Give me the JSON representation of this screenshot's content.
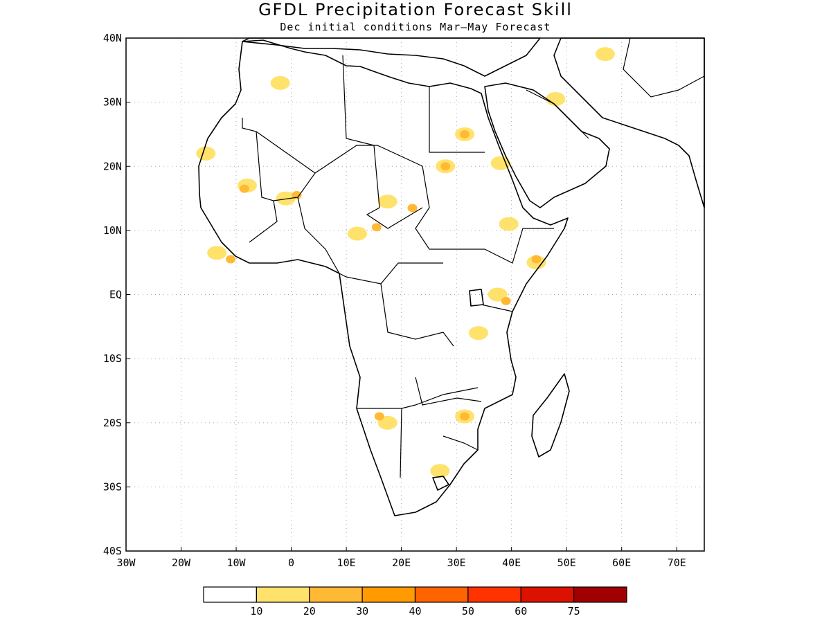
{
  "title": "GFDL Precipitation Forecast Skill",
  "subtitle": "Dec initial conditions  Mar–May Forecast",
  "axes": {
    "lon_range": [
      -30,
      75
    ],
    "lat_range": [
      -40,
      40
    ],
    "x_ticks": [
      "30W",
      "20W",
      "10W",
      "0",
      "10E",
      "20E",
      "30E",
      "40E",
      "50E",
      "60E",
      "70E"
    ],
    "y_ticks": [
      "40N",
      "30N",
      "20N",
      "10N",
      "EQ",
      "10S",
      "20S",
      "30S",
      "40S"
    ]
  },
  "legend": {
    "colors": [
      "#ffffff",
      "#ffe26b",
      "#ffb934",
      "#ff9a00",
      "#ff6400",
      "#ff3300",
      "#dd1100",
      "#a00000"
    ],
    "labels": [
      "10",
      "20",
      "30",
      "40",
      "50",
      "60",
      "75"
    ]
  },
  "skill_regions": [
    {
      "lon": 17.5,
      "lat": 14.5,
      "level": 1
    },
    {
      "lon": 22.0,
      "lat": 13.5,
      "level": 2
    },
    {
      "lon": 12.0,
      "lat": 9.5,
      "level": 1
    },
    {
      "lon": 15.5,
      "lat": 10.5,
      "level": 2
    },
    {
      "lon": -8.0,
      "lat": 17.0,
      "level": 1
    },
    {
      "lon": -8.5,
      "lat": 16.5,
      "level": 2
    },
    {
      "lon": -1.0,
      "lat": 15.0,
      "level": 1
    },
    {
      "lon": 1.0,
      "lat": 15.5,
      "level": 2
    },
    {
      "lon": 28.0,
      "lat": 20.0,
      "level": 1
    },
    {
      "lon": 28.0,
      "lat": 20.0,
      "level": 2
    },
    {
      "lon": 31.5,
      "lat": 25.0,
      "level": 1
    },
    {
      "lon": 31.5,
      "lat": 25.0,
      "level": 2
    },
    {
      "lon": 44.5,
      "lat": 5.0,
      "level": 1
    },
    {
      "lon": 44.5,
      "lat": 5.5,
      "level": 2
    },
    {
      "lon": 37.5,
      "lat": 0.0,
      "level": 1
    },
    {
      "lon": 39.0,
      "lat": -1.0,
      "level": 2
    },
    {
      "lon": 34.0,
      "lat": -6.0,
      "level": 1
    },
    {
      "lon": 17.5,
      "lat": -20.0,
      "level": 1
    },
    {
      "lon": 16.0,
      "lat": -19.0,
      "level": 2
    },
    {
      "lon": 31.5,
      "lat": -19.0,
      "level": 1
    },
    {
      "lon": 31.5,
      "lat": -19.0,
      "level": 2
    },
    {
      "lon": 27.0,
      "lat": -27.5,
      "level": 1
    },
    {
      "lon": 57.0,
      "lat": 37.5,
      "level": 1
    },
    {
      "lon": 48.0,
      "lat": 30.5,
      "level": 1
    },
    {
      "lon": 39.5,
      "lat": 11.0,
      "level": 1
    },
    {
      "lon": 38.0,
      "lat": 20.5,
      "level": 1
    },
    {
      "lon": -13.5,
      "lat": 6.5,
      "level": 1
    },
    {
      "lon": -11.0,
      "lat": 5.5,
      "level": 2
    },
    {
      "lon": -15.5,
      "lat": 22.0,
      "level": 1
    },
    {
      "lon": -2.0,
      "lat": 33.0,
      "level": 1
    }
  ]
}
